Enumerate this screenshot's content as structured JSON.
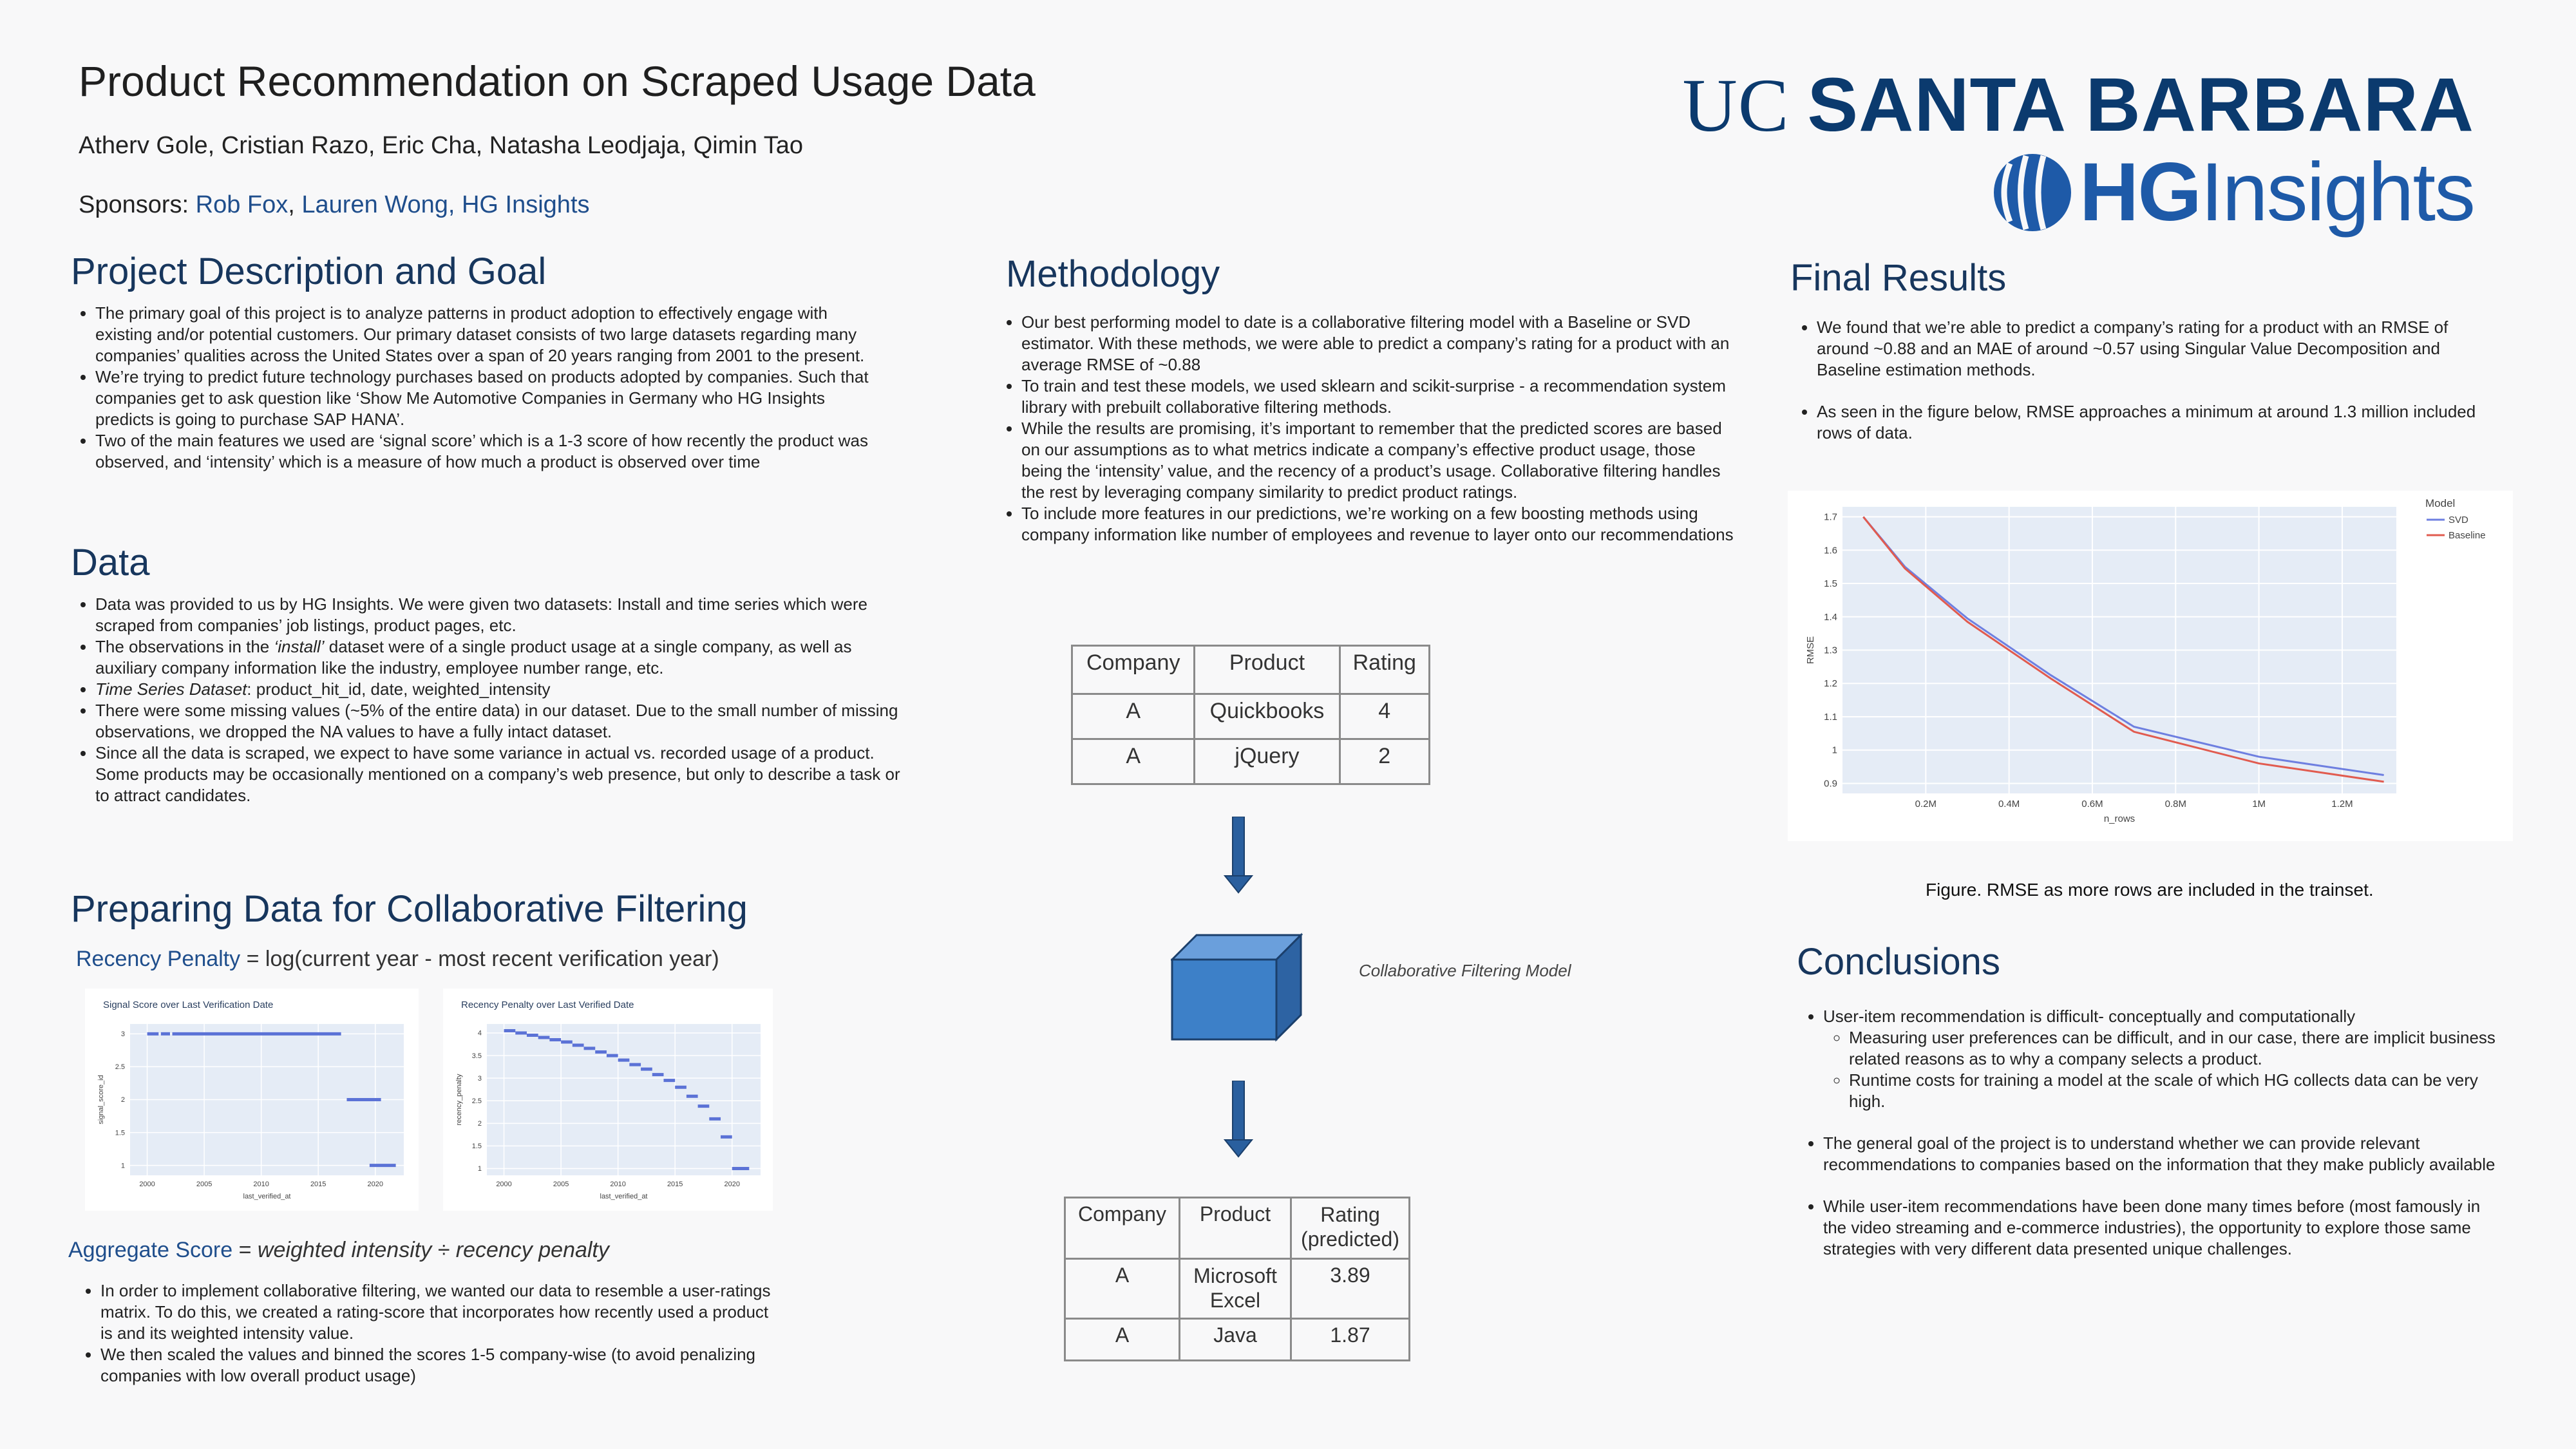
{
  "header": {
    "title": "Product Recommendation on Scraped Usage Data",
    "authors": "Atherv Gole, Cristian Razo, Eric Cha, Natasha Leodjaja, Qimin Tao",
    "sponsors_label": "Sponsors: ",
    "sponsor_1": "Rob Fox",
    "sponsor_sep": ", ",
    "sponsor_2": "Lauren Wong, HG Insights",
    "logo_uc": "UC",
    "logo_sb": "SANTA BARBARA",
    "logo_hg_bold": "HG",
    "logo_hg_light": "Insights",
    "brand_color": "#0b3a6e",
    "accent_color": "#1e5aa8"
  },
  "project": {
    "heading": "Project Description and Goal",
    "bullets": [
      "The primary goal of this project is to analyze patterns in product adoption to effectively engage with existing and/or potential customers. Our primary dataset consists of two large datasets regarding many companies’ qualities across the United States over a span of 20 years ranging from 2001 to the present.",
      "We’re trying to predict future technology purchases based on products adopted by companies. Such that companies get to ask question like ‘Show Me Automotive Companies in Germany who HG Insights predicts is going to purchase SAP HANA’.",
      "Two of the main features we used are ‘signal score’ which is a 1-3 score of how recently the product was observed, and ‘intensity’ which is a measure of how much a product is observed over time"
    ]
  },
  "data_section": {
    "heading": "Data",
    "b1": "Data was provided to us by HG Insights. We were given two datasets: Install and time series which were scraped from companies’ job listings, product pages, etc.",
    "b2_pre": "The observations in the ",
    "b2_em": "‘install’",
    "b2_post": " dataset were of a single product usage at a single company, as well as auxiliary company information like the industry, employee number range, etc.",
    "b3_em": "Time Series Dataset",
    "b3_post": ": product_hit_id, date, weighted_intensity",
    "b4": "There were some missing values (~5% of the entire data) in our dataset. Due to the small number of missing observations, we dropped the NA values to have a fully intact dataset.",
    "b5": "Since all the data is scraped, we expect to have some variance in actual vs. recorded usage of a product. Some products may be occasionally mentioned on a company’s web presence, but only to describe a task or to attract candidates."
  },
  "preparing": {
    "heading": "Preparing Data for Collaborative Filtering",
    "recency_label": "Recency Penalty",
    "recency_formula": " = log(current year - most recent verification year)",
    "agg_label": "Aggregate Score",
    "agg_formula_pre": " = ",
    "agg_formula": "weighted intensity ÷ recency penalty",
    "bullets": [
      "In order to implement collaborative filtering, we wanted our data to resemble a user-ratings matrix. To do this, we created a rating-score that incorporates how recently used a product is and its weighted intensity value.",
      "We then scaled the values and binned the scores 1-5 company-wise (to avoid penalizing companies with low overall product usage)"
    ]
  },
  "methodology": {
    "heading": "Methodology",
    "bullets": [
      "Our best performing model to date is a collaborative filtering model with a Baseline or SVD estimator. With these methods, we were able to predict a company’s rating for a product with an average RMSE of ~0.88",
      "To train and test these models, we used sklearn and scikit-surprise - a recommendation system library with prebuilt collaborative filtering methods.",
      "While the results are promising, it’s important to remember that the predicted scores are based on our assumptions as to what metrics indicate a company’s effective product usage, those being the ‘intensity’ value, and the recency of a product’s usage. Collaborative filtering handles the rest by leveraging company similarity to predict product ratings.",
      "To include more features in our predictions, we’re working on a few boosting methods using company information like number of employees and revenue to layer onto our recommendations"
    ],
    "table1": {
      "headers": [
        "Company",
        "Product",
        "Rating"
      ],
      "rows": [
        [
          "A",
          "Quickbooks",
          "4"
        ],
        [
          "A",
          "jQuery",
          "2"
        ]
      ]
    },
    "model_label": "Collaborative Filtering Model",
    "table2": {
      "headers": [
        "Company",
        "Product",
        "Rating (predicted)"
      ],
      "rows": [
        [
          "A",
          "Microsoft Excel",
          "3.89"
        ],
        [
          "A",
          "Java",
          "1.87"
        ]
      ]
    }
  },
  "results": {
    "heading": "Final Results",
    "bullets": [
      "We found that we’re able to predict a company’s rating for a product with an RMSE of around ~0.88 and an MAE of around ~0.57 using Singular Value Decomposition and Baseline estimation methods.",
      "As seen in the figure below, RMSE approaches a minimum at around 1.3 million included rows of data."
    ],
    "caption": "Figure. RMSE as more rows are included in the trainset."
  },
  "conclusions": {
    "heading": "Conclusions",
    "b1": "User-item recommendation is difficult- conceptually and computationally",
    "b1_sub": [
      "Measuring user preferences can be difficult, and in our case, there are implicit business related reasons as to why a company selects a product.",
      "Runtime costs for training a model at the scale of which HG collects data can be very high."
    ],
    "b2": "The general goal of the project is to understand whether we can provide relevant recommendations to companies based on the information that they make publicly available",
    "b3": "While user-item recommendations have been done many times before (most famously in the video streaming and e-commerce industries), the opportunity to explore those same strategies with very different data presented unique challenges."
  },
  "chart_data": [
    {
      "type": "line",
      "title": "",
      "xlabel": "n_rows",
      "ylabel": "RMSE",
      "legend_title": "Model",
      "legend_position": "top-right",
      "x": [
        50000,
        150000,
        300000,
        500000,
        700000,
        1000000,
        1300000
      ],
      "x_tick_values": [
        200000,
        400000,
        600000,
        800000,
        1000000,
        1200000
      ],
      "x_tick_labels": [
        "0.2M",
        "0.4M",
        "0.6M",
        "0.8M",
        "1M",
        "1.2M"
      ],
      "y_tick_values": [
        0.9,
        1,
        1.1,
        1.2,
        1.3,
        1.4,
        1.5,
        1.6,
        1.7
      ],
      "y_tick_labels": [
        "0.9",
        "1",
        "1.1",
        "1.2",
        "1.3",
        "1.4",
        "1.5",
        "1.6",
        "1.7"
      ],
      "xlim": [
        0,
        1330000
      ],
      "ylim": [
        0.87,
        1.73
      ],
      "grid": true,
      "series": [
        {
          "name": "SVD",
          "color": "#6e7fe0",
          "values": [
            1.7,
            1.55,
            1.395,
            1.225,
            1.07,
            0.98,
            0.925
          ]
        },
        {
          "name": "Baseline",
          "color": "#e15b4f",
          "values": [
            1.7,
            1.545,
            1.385,
            1.215,
            1.055,
            0.96,
            0.905
          ]
        }
      ]
    },
    {
      "type": "scatter",
      "title": "Signal Score over Last Verification Date",
      "xlabel": "last_verified_at",
      "ylabel": "signal_score_id",
      "x_tick_values": [
        2000,
        2005,
        2010,
        2015,
        2020
      ],
      "x_tick_labels": [
        "2000",
        "2005",
        "2010",
        "2015",
        "2020"
      ],
      "y_tick_values": [
        1,
        1.5,
        2,
        2.5,
        3
      ],
      "y_tick_labels": [
        "1",
        "1.5",
        "2",
        "2.5",
        "3"
      ],
      "xlim": [
        1998.5,
        2022.5
      ],
      "ylim": [
        0.85,
        3.15
      ],
      "grid": true,
      "color": "#5b72d6",
      "segments": [
        {
          "x0": 2000,
          "x1": 2001,
          "y": 3
        },
        {
          "x0": 2001.2,
          "x1": 2002,
          "y": 3
        },
        {
          "x0": 2002.2,
          "x1": 2017,
          "y": 3
        },
        {
          "x0": 2017.5,
          "x1": 2020.5,
          "y": 2
        },
        {
          "x0": 2019.5,
          "x1": 2021.8,
          "y": 1
        }
      ]
    },
    {
      "type": "scatter",
      "title": "Recency Penalty over Last Verified Date",
      "xlabel": "last_verified_at",
      "ylabel": "recency_penalty",
      "x_tick_values": [
        2000,
        2005,
        2010,
        2015,
        2020
      ],
      "x_tick_labels": [
        "2000",
        "2005",
        "2010",
        "2015",
        "2020"
      ],
      "y_tick_values": [
        1,
        1.5,
        2,
        2.5,
        3,
        3.5,
        4
      ],
      "y_tick_labels": [
        "1",
        "1.5",
        "2",
        "2.5",
        "3",
        "3.5",
        "4"
      ],
      "xlim": [
        1998.5,
        2022.5
      ],
      "ylim": [
        0.85,
        4.2
      ],
      "grid": true,
      "color": "#5b72d6",
      "segments": [
        {
          "x0": 2000,
          "x1": 2001,
          "y": 4.05
        },
        {
          "x0": 2001,
          "x1": 2002,
          "y": 4.0
        },
        {
          "x0": 2002,
          "x1": 2003,
          "y": 3.95
        },
        {
          "x0": 2003,
          "x1": 2004,
          "y": 3.9
        },
        {
          "x0": 2004,
          "x1": 2005,
          "y": 3.85
        },
        {
          "x0": 2005,
          "x1": 2006,
          "y": 3.8
        },
        {
          "x0": 2006,
          "x1": 2007,
          "y": 3.73
        },
        {
          "x0": 2007,
          "x1": 2008,
          "y": 3.66
        },
        {
          "x0": 2008,
          "x1": 2009,
          "y": 3.58
        },
        {
          "x0": 2009,
          "x1": 2010,
          "y": 3.5
        },
        {
          "x0": 2010,
          "x1": 2011,
          "y": 3.4
        },
        {
          "x0": 2011,
          "x1": 2012,
          "y": 3.3
        },
        {
          "x0": 2012,
          "x1": 2013,
          "y": 3.2
        },
        {
          "x0": 2013,
          "x1": 2014,
          "y": 3.08
        },
        {
          "x0": 2014,
          "x1": 2015,
          "y": 2.95
        },
        {
          "x0": 2015,
          "x1": 2016,
          "y": 2.8
        },
        {
          "x0": 2016,
          "x1": 2017,
          "y": 2.6
        },
        {
          "x0": 2017,
          "x1": 2018,
          "y": 2.38
        },
        {
          "x0": 2018,
          "x1": 2019,
          "y": 2.1
        },
        {
          "x0": 2019,
          "x1": 2020,
          "y": 1.7
        },
        {
          "x0": 2020,
          "x1": 2021.5,
          "y": 1.0
        }
      ]
    }
  ]
}
